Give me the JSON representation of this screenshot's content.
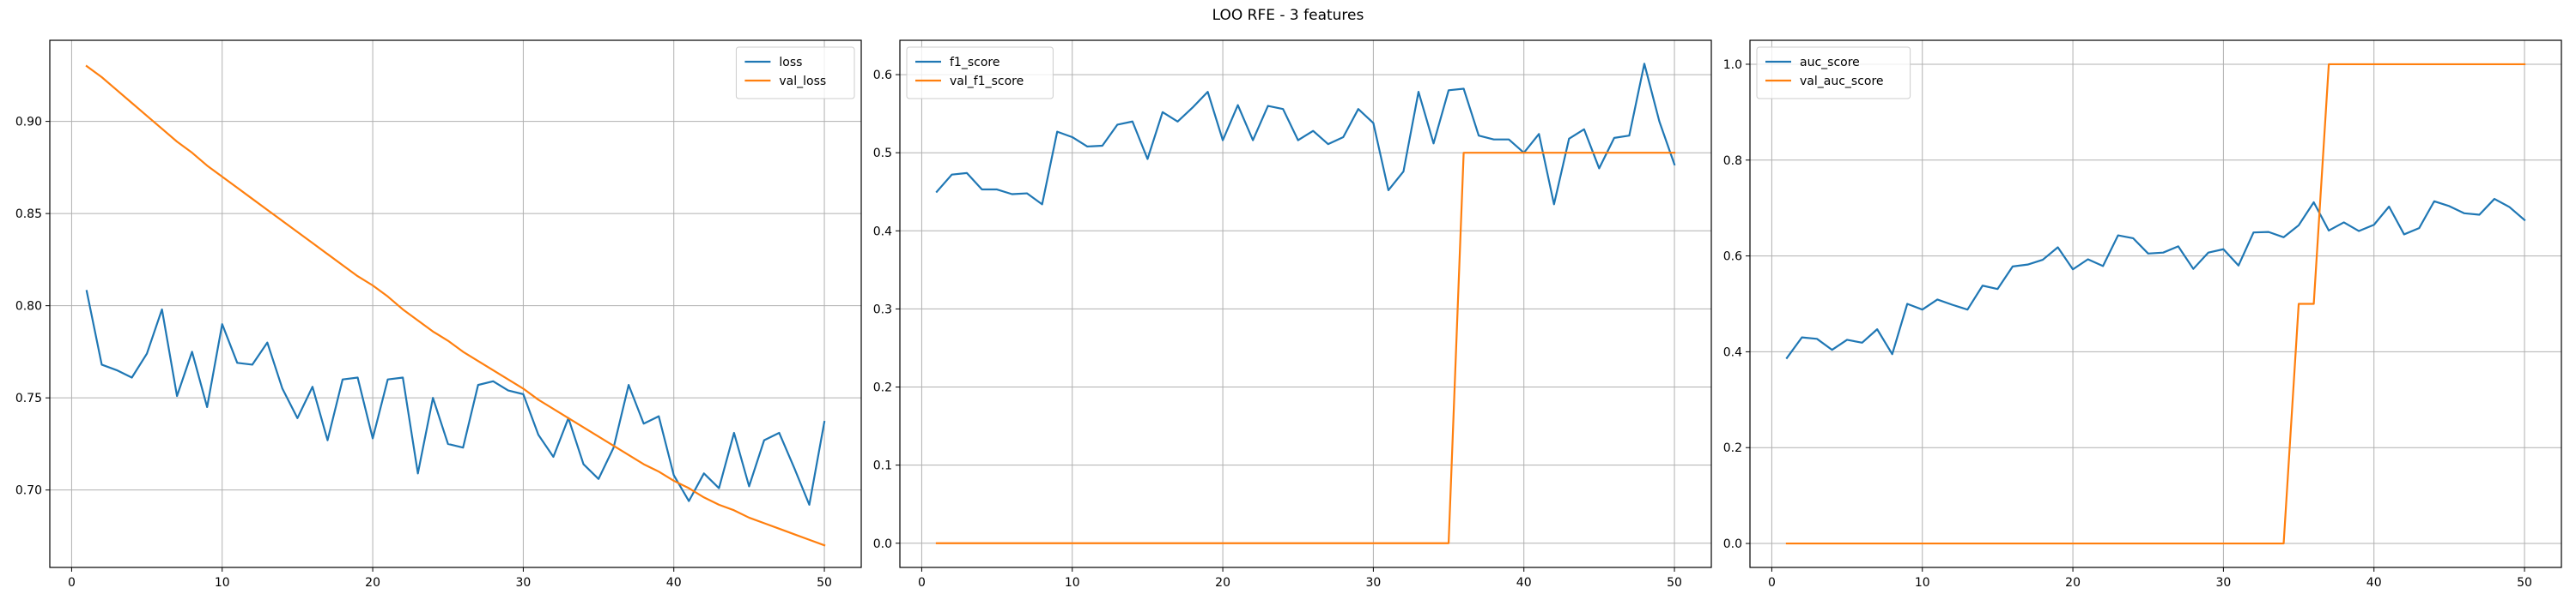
{
  "figure": {
    "title": "LOO RFE - 3 features"
  },
  "colors": {
    "series_1": "#1f77b4",
    "series_2": "#ff7f0e",
    "grid": "#b0b0b0"
  },
  "chart_data": [
    {
      "type": "line",
      "title": "",
      "xlabel": "",
      "ylabel": "",
      "xlim": [
        -1.45,
        52.45
      ],
      "ylim": [
        0.658,
        0.944
      ],
      "xticks": [
        0,
        10,
        20,
        30,
        40,
        50
      ],
      "yticks": [
        0.7,
        0.75,
        0.8,
        0.85,
        0.9
      ],
      "ytick_labels": [
        "0.70",
        "0.75",
        "0.80",
        "0.85",
        "0.90"
      ],
      "grid": true,
      "legend": "upper right",
      "x": [
        1,
        2,
        3,
        4,
        5,
        6,
        7,
        8,
        9,
        10,
        11,
        12,
        13,
        14,
        15,
        16,
        17,
        18,
        19,
        20,
        21,
        22,
        23,
        24,
        25,
        26,
        27,
        28,
        29,
        30,
        31,
        32,
        33,
        34,
        35,
        36,
        37,
        38,
        39,
        40,
        41,
        42,
        43,
        44,
        45,
        46,
        47,
        48,
        49,
        50
      ],
      "series": [
        {
          "name": "loss",
          "color": "#1f77b4",
          "values": [
            0.808,
            0.768,
            0.765,
            0.761,
            0.774,
            0.798,
            0.751,
            0.775,
            0.745,
            0.79,
            0.769,
            0.768,
            0.78,
            0.755,
            0.739,
            0.756,
            0.727,
            0.76,
            0.761,
            0.728,
            0.76,
            0.761,
            0.709,
            0.75,
            0.725,
            0.723,
            0.757,
            0.759,
            0.754,
            0.752,
            0.73,
            0.718,
            0.739,
            0.714,
            0.706,
            0.723,
            0.757,
            0.736,
            0.74,
            0.708,
            0.694,
            0.709,
            0.701,
            0.731,
            0.702,
            0.727,
            0.731,
            0.712,
            0.692,
            0.737
          ]
        },
        {
          "name": "val_loss",
          "color": "#ff7f0e",
          "values": [
            0.93,
            0.924,
            0.917,
            0.91,
            0.903,
            0.896,
            0.889,
            0.883,
            0.876,
            0.87,
            0.864,
            0.858,
            0.852,
            0.846,
            0.84,
            0.834,
            0.828,
            0.822,
            0.816,
            0.811,
            0.805,
            0.798,
            0.792,
            0.786,
            0.781,
            0.775,
            0.77,
            0.765,
            0.76,
            0.755,
            0.749,
            0.744,
            0.739,
            0.734,
            0.729,
            0.724,
            0.719,
            0.714,
            0.71,
            0.705,
            0.701,
            0.696,
            0.692,
            0.689,
            0.685,
            0.682,
            0.679,
            0.676,
            0.673,
            0.67
          ]
        }
      ]
    },
    {
      "type": "line",
      "title": "",
      "xlabel": "",
      "ylabel": "",
      "xlim": [
        -1.45,
        52.45
      ],
      "ylim": [
        -0.031,
        0.644
      ],
      "xticks": [
        0,
        10,
        20,
        30,
        40,
        50
      ],
      "yticks": [
        0.0,
        0.1,
        0.2,
        0.3,
        0.4,
        0.5,
        0.6
      ],
      "ytick_labels": [
        "0.0",
        "0.1",
        "0.2",
        "0.3",
        "0.4",
        "0.5",
        "0.6"
      ],
      "grid": true,
      "legend": "upper left",
      "x": [
        1,
        2,
        3,
        4,
        5,
        6,
        7,
        8,
        9,
        10,
        11,
        12,
        13,
        14,
        15,
        16,
        17,
        18,
        19,
        20,
        21,
        22,
        23,
        24,
        25,
        26,
        27,
        28,
        29,
        30,
        31,
        32,
        33,
        34,
        35,
        36,
        37,
        38,
        39,
        40,
        41,
        42,
        43,
        44,
        45,
        46,
        47,
        48,
        49,
        50
      ],
      "series": [
        {
          "name": "f1_score",
          "color": "#1f77b4",
          "values": [
            0.45,
            0.472,
            0.474,
            0.453,
            0.453,
            0.447,
            0.448,
            0.434,
            0.527,
            0.52,
            0.508,
            0.509,
            0.536,
            0.54,
            0.492,
            0.552,
            0.54,
            0.558,
            0.578,
            0.516,
            0.561,
            0.516,
            0.56,
            0.556,
            0.516,
            0.528,
            0.511,
            0.52,
            0.556,
            0.538,
            0.452,
            0.476,
            0.578,
            0.512,
            0.58,
            0.582,
            0.522,
            0.517,
            0.517,
            0.5,
            0.524,
            0.434,
            0.518,
            0.53,
            0.48,
            0.519,
            0.522,
            0.614,
            0.54,
            0.485
          ]
        },
        {
          "name": "val_f1_score",
          "color": "#ff7f0e",
          "values": [
            0,
            0,
            0,
            0,
            0,
            0,
            0,
            0,
            0,
            0,
            0,
            0,
            0,
            0,
            0,
            0,
            0,
            0,
            0,
            0,
            0,
            0,
            0,
            0,
            0,
            0,
            0,
            0,
            0,
            0,
            0,
            0,
            0,
            0,
            0,
            0.5,
            0.5,
            0.5,
            0.5,
            0.5,
            0.5,
            0.5,
            0.5,
            0.5,
            0.5,
            0.5,
            0.5,
            0.5,
            0.5,
            0.5
          ]
        }
      ]
    },
    {
      "type": "line",
      "title": "",
      "xlabel": "",
      "ylabel": "",
      "xlim": [
        -1.45,
        52.45
      ],
      "ylim": [
        -0.05,
        1.05
      ],
      "xticks": [
        0,
        10,
        20,
        30,
        40,
        50
      ],
      "yticks": [
        0.0,
        0.2,
        0.4,
        0.6,
        0.8,
        1.0
      ],
      "ytick_labels": [
        "0.0",
        "0.2",
        "0.4",
        "0.6",
        "0.8",
        "1.0"
      ],
      "grid": true,
      "legend": "upper left",
      "x": [
        1,
        2,
        3,
        4,
        5,
        6,
        7,
        8,
        9,
        10,
        11,
        12,
        13,
        14,
        15,
        16,
        17,
        18,
        19,
        20,
        21,
        22,
        23,
        24,
        25,
        26,
        27,
        28,
        29,
        30,
        31,
        32,
        33,
        34,
        35,
        36,
        37,
        38,
        39,
        40,
        41,
        42,
        43,
        44,
        45,
        46,
        47,
        48,
        49,
        50
      ],
      "series": [
        {
          "name": "auc_score",
          "color": "#1f77b4",
          "values": [
            0.387,
            0.43,
            0.427,
            0.404,
            0.425,
            0.419,
            0.447,
            0.395,
            0.5,
            0.488,
            0.509,
            0.498,
            0.488,
            0.538,
            0.531,
            0.578,
            0.582,
            0.592,
            0.618,
            0.572,
            0.593,
            0.579,
            0.643,
            0.637,
            0.605,
            0.607,
            0.62,
            0.573,
            0.607,
            0.614,
            0.58,
            0.649,
            0.65,
            0.639,
            0.664,
            0.712,
            0.653,
            0.67,
            0.652,
            0.665,
            0.703,
            0.645,
            0.658,
            0.714,
            0.704,
            0.689,
            0.686,
            0.719,
            0.702,
            0.675
          ]
        },
        {
          "name": "val_auc_score",
          "color": "#ff7f0e",
          "values": [
            0,
            0,
            0,
            0,
            0,
            0,
            0,
            0,
            0,
            0,
            0,
            0,
            0,
            0,
            0,
            0,
            0,
            0,
            0,
            0,
            0,
            0,
            0,
            0,
            0,
            0,
            0,
            0,
            0,
            0,
            0,
            0,
            0,
            0,
            0.5,
            0.5,
            1,
            1,
            1,
            1,
            1,
            1,
            1,
            1,
            1,
            1,
            1,
            1,
            1,
            1
          ]
        }
      ]
    }
  ]
}
